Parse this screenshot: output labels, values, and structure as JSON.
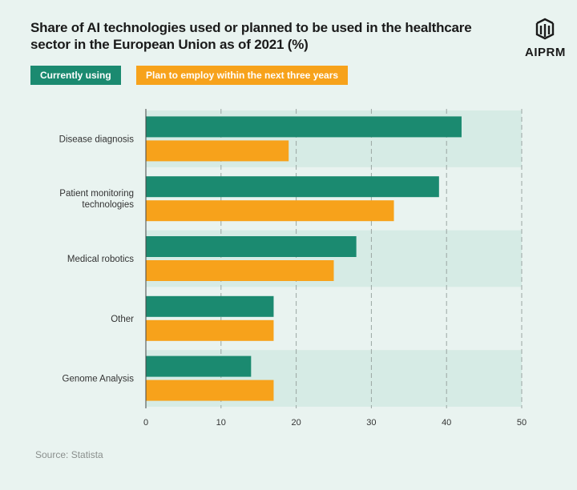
{
  "header": {
    "title": "Share of AI technologies used or planned to be used in the healthcare sector in the European Union as of 2021 (%)",
    "logo_text": "AIPRM"
  },
  "footer": {
    "source": "Source: Statista"
  },
  "colors": {
    "current": "#1b8a70",
    "plan": "#f7a21b",
    "band": "#d6ebe5",
    "background": "#e9f3f0"
  },
  "chart_data": {
    "type": "bar",
    "orientation": "horizontal",
    "title": "Share of AI technologies used or planned to be used in the healthcare sector in the European Union as of 2021 (%)",
    "categories": [
      "Disease diagnosis",
      "Patient monitoring technologies",
      "Medical robotics",
      "Other",
      "Genome Analysis"
    ],
    "series": [
      {
        "name": "Currently using",
        "values": [
          42,
          39,
          28,
          17,
          14
        ]
      },
      {
        "name": "Plan to employ within the next three years",
        "values": [
          19,
          33,
          25,
          17,
          17
        ]
      }
    ],
    "xlim": [
      0,
      50
    ],
    "xticks": [
      0,
      10,
      20,
      30,
      40,
      50
    ],
    "grid": true,
    "legend_position": "top-left",
    "xlabel": "",
    "ylabel": ""
  }
}
